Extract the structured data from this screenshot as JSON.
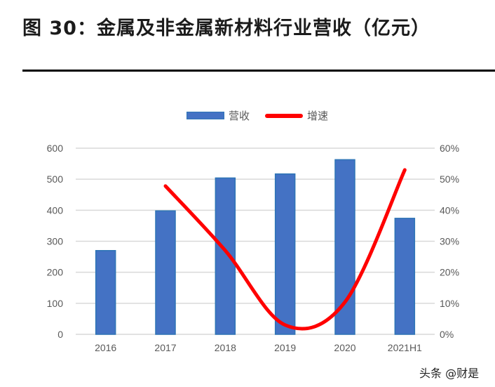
{
  "title": "图 30：金属及非金属新材料行业营收（亿元）",
  "legend": {
    "bar_label": "营收",
    "line_label": "增速"
  },
  "watermark": "头条 @财是",
  "colors": {
    "bar_fill": "#4472C4",
    "bar_border": "#2E75B6",
    "line": "#FF0000",
    "grid": "#D9D9D9",
    "tick_text": "#595959"
  },
  "chart_data": {
    "type": "bar+line",
    "title": "金属及非金属新材料行业营收（亿元）",
    "categories": [
      "2016",
      "2017",
      "2018",
      "2019",
      "2020",
      "2021H1"
    ],
    "series": [
      {
        "name": "营收",
        "type": "bar",
        "axis": "left",
        "values": [
          270,
          398,
          504,
          517,
          563,
          374
        ]
      },
      {
        "name": "增速",
        "type": "line",
        "axis": "right",
        "smooth": true,
        "values": [
          null,
          0.478,
          0.27,
          0.03,
          0.104,
          0.53
        ]
      }
    ],
    "y_left": {
      "min": 0,
      "max": 600,
      "ticks": [
        "0",
        "100",
        "200",
        "300",
        "400",
        "500",
        "600"
      ]
    },
    "y_right": {
      "min": 0,
      "max": 0.6,
      "ticks": [
        "0%",
        "10%",
        "20%",
        "30%",
        "40%",
        "50%",
        "60%"
      ]
    },
    "xlabel": "",
    "ylabel": "",
    "grid": true,
    "legend_position": "top"
  }
}
